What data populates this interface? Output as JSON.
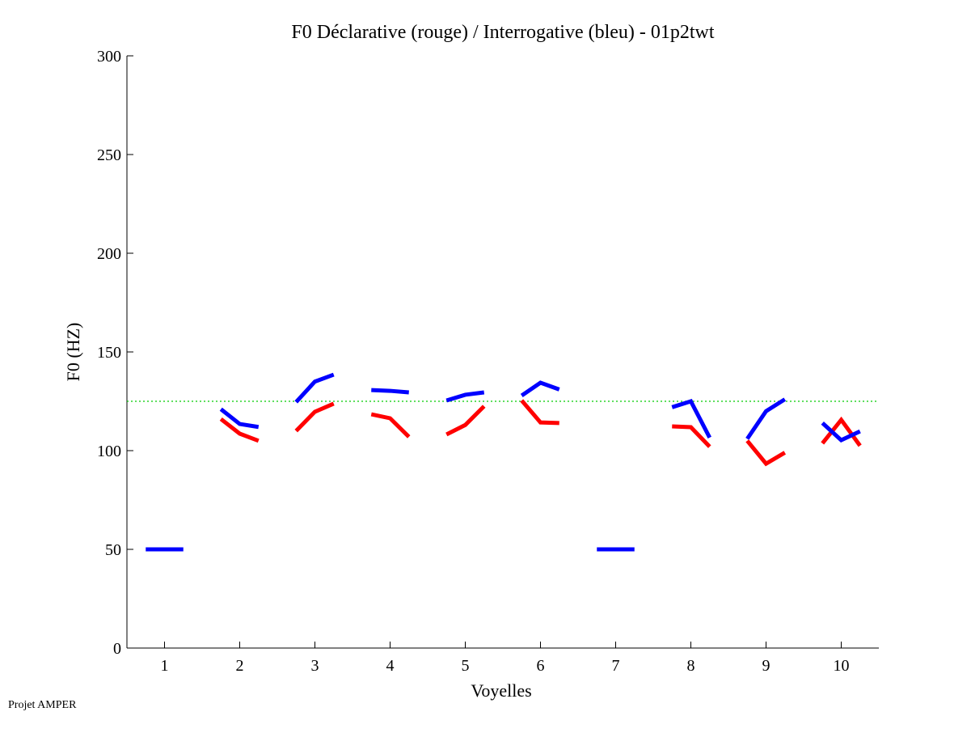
{
  "chart_data": {
    "type": "line",
    "title": "F0 Déclarative (rouge) / Interrogative (bleu) - 01p2twt",
    "xlabel": "Voyelles",
    "ylabel": "F0 (HZ)",
    "xlim": [
      0.5,
      10.5
    ],
    "ylim": [
      0,
      300
    ],
    "xticks": [
      1,
      2,
      3,
      4,
      5,
      6,
      7,
      8,
      9,
      10
    ],
    "yticks": [
      0,
      50,
      100,
      150,
      200,
      250,
      300
    ],
    "grid": false,
    "reference_line": {
      "y": 125,
      "color": "#00cc00",
      "style": "dotted"
    },
    "series": [
      {
        "name": "Déclarative (rouge)",
        "color": "#ff0000",
        "segments": [
          {
            "vowel": 2,
            "values": [
              116,
              108.6,
              105
            ]
          },
          {
            "vowel": 3,
            "values": [
              110,
              119.7,
              123.8
            ]
          },
          {
            "vowel": 4,
            "values": [
              118.4,
              116.4,
              107
            ]
          },
          {
            "vowel": 5,
            "values": [
              108.2,
              113,
              122.5
            ]
          },
          {
            "vowel": 6,
            "values": [
              125.4,
              114.3,
              114
            ]
          },
          {
            "vowel": 8,
            "values": [
              112.3,
              111.9,
              102
            ]
          },
          {
            "vowel": 9,
            "values": [
              105,
              93.4,
              99
            ]
          },
          {
            "vowel": 10,
            "values": [
              103.7,
              115.6,
              102.5
            ]
          }
        ]
      },
      {
        "name": "Interrogative (bleu)",
        "color": "#0000ff",
        "segments": [
          {
            "vowel": 1,
            "values": [
              50,
              50,
              50
            ]
          },
          {
            "vowel": 2,
            "values": [
              121,
              113.5,
              112
            ]
          },
          {
            "vowel": 3,
            "values": [
              124.6,
              135,
              138.5
            ]
          },
          {
            "vowel": 4,
            "values": [
              130.7,
              130.3,
              129.5
            ]
          },
          {
            "vowel": 5,
            "values": [
              125.4,
              128.3,
              129.5
            ]
          },
          {
            "vowel": 6,
            "values": [
              127.9,
              134.4,
              131
            ]
          },
          {
            "vowel": 7,
            "values": [
              50,
              50,
              50
            ]
          },
          {
            "vowel": 8,
            "values": [
              122,
              125,
              106.6
            ]
          },
          {
            "vowel": 9,
            "values": [
              106,
              120,
              126
            ]
          },
          {
            "vowel": 10,
            "values": [
              114,
              105.3,
              109.8
            ]
          }
        ]
      }
    ]
  },
  "footer": "Projet AMPER"
}
